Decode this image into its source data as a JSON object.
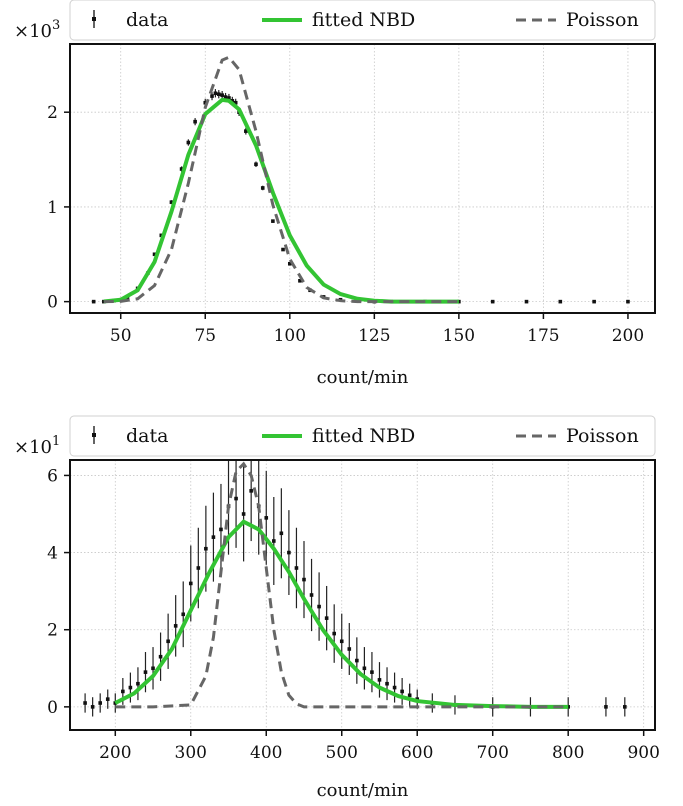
{
  "chart_data": [
    {
      "type": "line",
      "xlabel": "count/min",
      "ylabel": "",
      "y_multiplier": {
        "base": "×10",
        "exponent": "3"
      },
      "xlim": [
        35,
        208
      ],
      "ylim": [
        -0.12,
        2.72
      ],
      "x_ticks": [
        "50",
        "75",
        "100",
        "125",
        "150",
        "175",
        "200"
      ],
      "y_ticks": [
        "0",
        "1",
        "2"
      ],
      "grid": true,
      "legend": {
        "position": "top",
        "entries": [
          "data",
          "fitted NBD",
          "Poisson"
        ]
      },
      "series": [
        {
          "name": "data",
          "kind": "errorbar",
          "x": [
            42,
            45,
            48,
            50,
            52,
            55,
            58,
            60,
            62,
            65,
            68,
            70,
            72,
            75,
            77,
            78,
            79,
            80,
            81,
            82,
            83,
            84,
            85,
            87,
            90,
            92,
            95,
            98,
            100,
            103,
            106,
            110,
            115,
            120,
            125,
            130,
            140,
            150,
            160,
            170,
            180,
            190,
            200
          ],
          "y": [
            0.0,
            0.0,
            0.01,
            0.02,
            0.04,
            0.14,
            0.3,
            0.5,
            0.7,
            1.05,
            1.4,
            1.68,
            1.9,
            2.1,
            2.17,
            2.2,
            2.19,
            2.18,
            2.16,
            2.15,
            2.12,
            2.1,
            2.0,
            1.8,
            1.45,
            1.2,
            0.85,
            0.55,
            0.4,
            0.22,
            0.12,
            0.05,
            0.02,
            0.01,
            0.0,
            0.0,
            0.0,
            0.0,
            0.0,
            0.0,
            0.0,
            0.0,
            0.0
          ]
        },
        {
          "name": "fitted NBD",
          "kind": "line",
          "color": "#33c433",
          "x": [
            45,
            50,
            55,
            60,
            65,
            70,
            75,
            80,
            82,
            85,
            90,
            95,
            100,
            105,
            110,
            115,
            120,
            125,
            130,
            140,
            150
          ],
          "y": [
            0.002,
            0.02,
            0.12,
            0.42,
            0.95,
            1.55,
            1.98,
            2.13,
            2.12,
            2.03,
            1.65,
            1.15,
            0.7,
            0.38,
            0.18,
            0.08,
            0.03,
            0.01,
            0.0,
            0.0,
            0.0
          ]
        },
        {
          "name": "Poisson",
          "kind": "dashed",
          "color": "#666666",
          "x": [
            45,
            50,
            55,
            60,
            65,
            70,
            75,
            80,
            82,
            85,
            90,
            95,
            100,
            105,
            110,
            115,
            120,
            125,
            130,
            140,
            150
          ],
          "y": [
            0.0,
            0.003,
            0.03,
            0.17,
            0.55,
            1.25,
            2.05,
            2.55,
            2.58,
            2.45,
            1.8,
            1.02,
            0.45,
            0.15,
            0.04,
            0.01,
            0.0,
            0.0,
            0.0,
            0.0,
            0.0
          ]
        }
      ]
    },
    {
      "type": "line",
      "xlabel": "count/min",
      "ylabel": "",
      "y_multiplier": {
        "base": "×10",
        "exponent": "1"
      },
      "xlim": [
        140,
        915
      ],
      "ylim": [
        -0.6,
        6.4
      ],
      "x_ticks": [
        "200",
        "300",
        "400",
        "500",
        "600",
        "700",
        "800",
        "900"
      ],
      "y_ticks": [
        "0",
        "2",
        "4",
        "6"
      ],
      "grid": true,
      "legend": {
        "position": "top",
        "entries": [
          "data",
          "fitted NBD",
          "Poisson"
        ]
      },
      "series": [
        {
          "name": "data",
          "kind": "errorbar",
          "x": [
            160,
            170,
            180,
            190,
            200,
            210,
            220,
            230,
            240,
            250,
            260,
            270,
            280,
            290,
            300,
            310,
            320,
            330,
            340,
            350,
            360,
            370,
            380,
            390,
            400,
            410,
            420,
            430,
            440,
            450,
            460,
            470,
            480,
            490,
            500,
            510,
            520,
            530,
            540,
            550,
            560,
            570,
            580,
            590,
            600,
            620,
            650,
            700,
            750,
            800,
            850,
            875
          ],
          "y": [
            0.1,
            0.0,
            0.1,
            0.2,
            0.1,
            0.4,
            0.5,
            0.6,
            0.9,
            1.0,
            1.3,
            1.7,
            2.1,
            2.4,
            3.2,
            3.6,
            4.1,
            4.4,
            4.6,
            5.2,
            5.4,
            5.0,
            5.6,
            5.2,
            4.9,
            4.3,
            4.5,
            4.0,
            3.6,
            3.3,
            2.9,
            2.6,
            2.3,
            1.9,
            1.7,
            1.5,
            1.2,
            1.0,
            0.9,
            0.7,
            0.6,
            0.5,
            0.4,
            0.3,
            0.2,
            0.1,
            0.05,
            0.0,
            0.0,
            0.0,
            0.0,
            0.0
          ]
        },
        {
          "name": "fitted NBD",
          "kind": "line",
          "color": "#33c433",
          "x": [
            200,
            225,
            250,
            275,
            300,
            325,
            350,
            370,
            390,
            410,
            430,
            450,
            475,
            500,
            525,
            550,
            575,
            600,
            650,
            700,
            750,
            800
          ],
          "y": [
            0.1,
            0.35,
            0.8,
            1.5,
            2.5,
            3.5,
            4.4,
            4.8,
            4.6,
            4.1,
            3.5,
            2.8,
            2.0,
            1.35,
            0.85,
            0.5,
            0.28,
            0.15,
            0.05,
            0.02,
            0.0,
            0.0
          ]
        },
        {
          "name": "Poisson",
          "kind": "dashed",
          "color": "#666666",
          "x": [
            200,
            250,
            300,
            320,
            330,
            340,
            350,
            360,
            370,
            380,
            390,
            400,
            410,
            420,
            430,
            440,
            450,
            500,
            600,
            700,
            800
          ],
          "y": [
            0.0,
            0.0,
            0.05,
            0.8,
            1.8,
            3.5,
            5.2,
            6.1,
            6.3,
            6.0,
            5.2,
            3.6,
            2.0,
            0.9,
            0.3,
            0.08,
            0.0,
            0.0,
            0.0,
            0.0,
            0.0
          ]
        }
      ]
    }
  ]
}
